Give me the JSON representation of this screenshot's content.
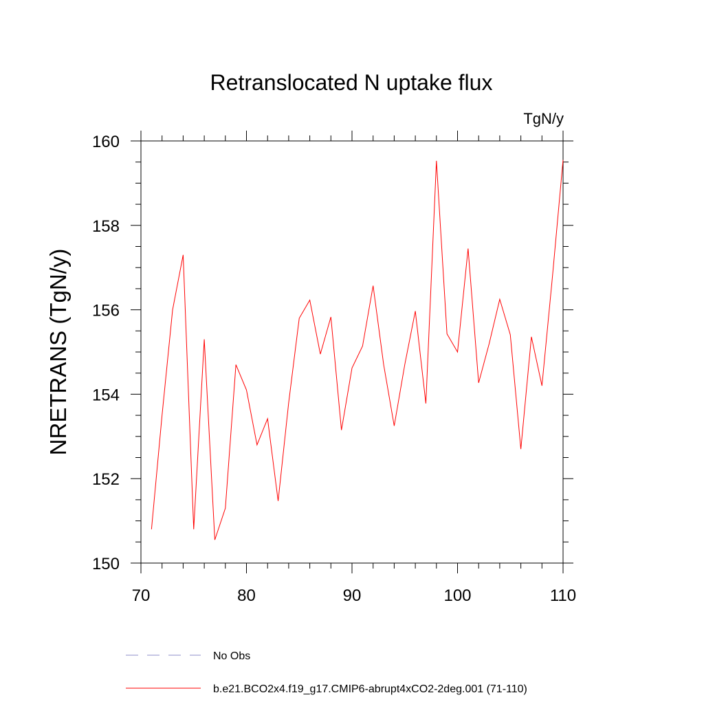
{
  "chart_data": {
    "type": "line",
    "title": "Retranslocated N uptake flux",
    "units": "TgN/y",
    "xlabel": "",
    "ylabel": "NRETRANS  (TgN/y)",
    "xlim": [
      70,
      110
    ],
    "ylim": [
      150,
      160
    ],
    "xticks": [
      70,
      80,
      90,
      100,
      110
    ],
    "yticks": [
      150,
      152,
      154,
      156,
      158,
      160
    ],
    "x_minor_step": 2,
    "y_minor_step": 0.5,
    "x": [
      71,
      72,
      73,
      74,
      75,
      76,
      77,
      78,
      79,
      80,
      81,
      82,
      83,
      84,
      85,
      86,
      87,
      88,
      89,
      90,
      91,
      92,
      93,
      94,
      95,
      96,
      97,
      98,
      99,
      100,
      101,
      102,
      103,
      104,
      105,
      106,
      107,
      108,
      109,
      110
    ],
    "series": [
      {
        "name": "b.e21.BCO2x4.f19_g17.CMIP6-abrupt4xCO2-2deg.001 (71-110)",
        "color": "#ff0000",
        "style": "solid",
        "values": [
          150.8,
          153.5,
          156.0,
          157.3,
          150.8,
          155.3,
          150.55,
          151.3,
          154.7,
          154.1,
          152.8,
          153.42,
          151.47,
          153.8,
          155.8,
          156.23,
          154.95,
          155.83,
          153.15,
          154.62,
          155.14,
          156.57,
          154.7,
          153.25,
          154.7,
          155.97,
          153.78,
          159.53,
          155.43,
          155.0,
          157.45,
          154.27,
          155.2,
          156.25,
          155.41,
          152.7,
          155.36,
          154.2,
          156.8,
          159.55
        ]
      }
    ],
    "legend": [
      {
        "label": "No Obs",
        "color": "#8c8cc8",
        "style": "dashed"
      },
      {
        "label": "b.e21.BCO2x4.f19_g17.CMIP6-abrupt4xCO2-2deg.001 (71-110)",
        "color": "#ff0000",
        "style": "solid"
      }
    ],
    "legend_position": "bottom-left"
  }
}
